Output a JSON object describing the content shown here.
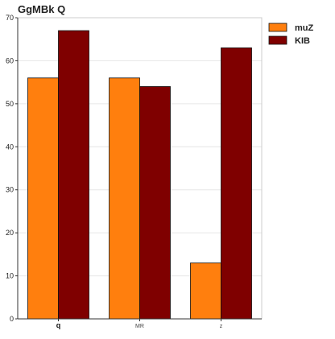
{
  "chart_data": {
    "type": "bar",
    "title": "GgMBk Q",
    "xlabel": "",
    "ylabel": "",
    "categories": [
      "q",
      "MR",
      "z"
    ],
    "series": [
      {
        "name": "muZ",
        "values": [
          56,
          56,
          13
        ],
        "color": "#ff7f0e"
      },
      {
        "name": "KIB",
        "values": [
          67,
          54,
          63
        ],
        "color": "#7f0000"
      }
    ],
    "ylim": [
      0,
      70
    ],
    "yticks": [
      0,
      10,
      20,
      30,
      40,
      50,
      60,
      70
    ],
    "grid": true,
    "legend_position": "top-right"
  }
}
